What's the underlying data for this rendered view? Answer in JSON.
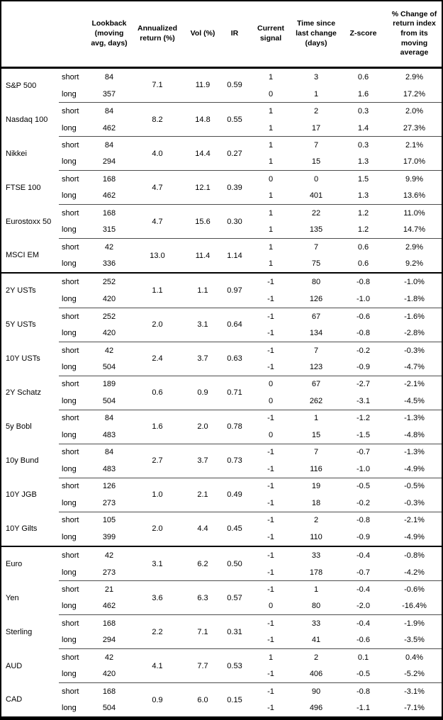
{
  "chart_data": {
    "type": "table",
    "columns": [
      "",
      "",
      "Lookback (moving avg, days)",
      "Annualized return (%)",
      "Vol (%)",
      "IR",
      "Current signal",
      "Time since last change (days)",
      "Z-score",
      "% Change of return index from its moving average"
    ],
    "side_labels": {
      "short": "short",
      "long": "long"
    },
    "groups": [
      {
        "asset": "S&P 500",
        "section": "equities",
        "annualized_return_pct": "7.1",
        "vol_pct": "11.9",
        "ir": "0.59",
        "short": {
          "lookback": "84",
          "signal": "1",
          "days_since_change": "3",
          "zscore": "0.6",
          "pct_change": "2.9%"
        },
        "long": {
          "lookback": "357",
          "signal": "0",
          "days_since_change": "1",
          "zscore": "1.6",
          "pct_change": "17.2%"
        }
      },
      {
        "asset": "Nasdaq 100",
        "section": "equities",
        "annualized_return_pct": "8.2",
        "vol_pct": "14.8",
        "ir": "0.55",
        "short": {
          "lookback": "84",
          "signal": "1",
          "days_since_change": "2",
          "zscore": "0.3",
          "pct_change": "2.0%"
        },
        "long": {
          "lookback": "462",
          "signal": "1",
          "days_since_change": "17",
          "zscore": "1.4",
          "pct_change": "27.3%"
        }
      },
      {
        "asset": "Nikkei",
        "section": "equities",
        "annualized_return_pct": "4.0",
        "vol_pct": "14.4",
        "ir": "0.27",
        "short": {
          "lookback": "84",
          "signal": "1",
          "days_since_change": "7",
          "zscore": "0.3",
          "pct_change": "2.1%"
        },
        "long": {
          "lookback": "294",
          "signal": "1",
          "days_since_change": "15",
          "zscore": "1.3",
          "pct_change": "17.0%"
        }
      },
      {
        "asset": "FTSE 100",
        "section": "equities",
        "annualized_return_pct": "4.7",
        "vol_pct": "12.1",
        "ir": "0.39",
        "short": {
          "lookback": "168",
          "signal": "0",
          "days_since_change": "0",
          "zscore": "1.5",
          "pct_change": "9.9%"
        },
        "long": {
          "lookback": "462",
          "signal": "1",
          "days_since_change": "401",
          "zscore": "1.3",
          "pct_change": "13.6%"
        }
      },
      {
        "asset": "Eurostoxx 50",
        "section": "equities",
        "annualized_return_pct": "4.7",
        "vol_pct": "15.6",
        "ir": "0.30",
        "short": {
          "lookback": "168",
          "signal": "1",
          "days_since_change": "22",
          "zscore": "1.2",
          "pct_change": "11.0%"
        },
        "long": {
          "lookback": "315",
          "signal": "1",
          "days_since_change": "135",
          "zscore": "1.2",
          "pct_change": "14.7%"
        }
      },
      {
        "asset": "MSCI EM",
        "section": "equities",
        "annualized_return_pct": "13.0",
        "vol_pct": "11.4",
        "ir": "1.14",
        "short": {
          "lookback": "42",
          "signal": "1",
          "days_since_change": "7",
          "zscore": "0.6",
          "pct_change": "2.9%"
        },
        "long": {
          "lookback": "336",
          "signal": "1",
          "days_since_change": "75",
          "zscore": "0.6",
          "pct_change": "9.2%"
        }
      },
      {
        "asset": "2Y USTs",
        "section": "bonds",
        "annualized_return_pct": "1.1",
        "vol_pct": "1.1",
        "ir": "0.97",
        "short": {
          "lookback": "252",
          "signal": "-1",
          "days_since_change": "80",
          "zscore": "-0.8",
          "pct_change": "-1.0%"
        },
        "long": {
          "lookback": "420",
          "signal": "-1",
          "days_since_change": "126",
          "zscore": "-1.0",
          "pct_change": "-1.8%"
        }
      },
      {
        "asset": "5Y USTs",
        "section": "bonds",
        "annualized_return_pct": "2.0",
        "vol_pct": "3.1",
        "ir": "0.64",
        "short": {
          "lookback": "252",
          "signal": "-1",
          "days_since_change": "67",
          "zscore": "-0.6",
          "pct_change": "-1.6%"
        },
        "long": {
          "lookback": "420",
          "signal": "-1",
          "days_since_change": "134",
          "zscore": "-0.8",
          "pct_change": "-2.8%"
        }
      },
      {
        "asset": "10Y USTs",
        "section": "bonds",
        "annualized_return_pct": "2.4",
        "vol_pct": "3.7",
        "ir": "0.63",
        "short": {
          "lookback": "42",
          "signal": "-1",
          "days_since_change": "7",
          "zscore": "-0.2",
          "pct_change": "-0.3%"
        },
        "long": {
          "lookback": "504",
          "signal": "-1",
          "days_since_change": "123",
          "zscore": "-0.9",
          "pct_change": "-4.7%"
        }
      },
      {
        "asset": "2Y Schatz",
        "section": "bonds",
        "annualized_return_pct": "0.6",
        "vol_pct": "0.9",
        "ir": "0.71",
        "short": {
          "lookback": "189",
          "signal": "0",
          "days_since_change": "67",
          "zscore": "-2.7",
          "pct_change": "-2.1%"
        },
        "long": {
          "lookback": "504",
          "signal": "0",
          "days_since_change": "262",
          "zscore": "-3.1",
          "pct_change": "-4.5%"
        }
      },
      {
        "asset": "5y Bobl",
        "section": "bonds",
        "annualized_return_pct": "1.6",
        "vol_pct": "2.0",
        "ir": "0.78",
        "short": {
          "lookback": "84",
          "signal": "-1",
          "days_since_change": "1",
          "zscore": "-1.2",
          "pct_change": "-1.3%"
        },
        "long": {
          "lookback": "483",
          "signal": "0",
          "days_since_change": "15",
          "zscore": "-1.5",
          "pct_change": "-4.8%"
        }
      },
      {
        "asset": "10y Bund",
        "section": "bonds",
        "annualized_return_pct": "2.7",
        "vol_pct": "3.7",
        "ir": "0.73",
        "short": {
          "lookback": "84",
          "signal": "-1",
          "days_since_change": "7",
          "zscore": "-0.7",
          "pct_change": "-1.3%"
        },
        "long": {
          "lookback": "483",
          "signal": "-1",
          "days_since_change": "116",
          "zscore": "-1.0",
          "pct_change": "-4.9%"
        }
      },
      {
        "asset": "10Y JGB",
        "section": "bonds",
        "annualized_return_pct": "1.0",
        "vol_pct": "2.1",
        "ir": "0.49",
        "short": {
          "lookback": "126",
          "signal": "-1",
          "days_since_change": "19",
          "zscore": "-0.5",
          "pct_change": "-0.5%"
        },
        "long": {
          "lookback": "273",
          "signal": "-1",
          "days_since_change": "18",
          "zscore": "-0.2",
          "pct_change": "-0.3%"
        }
      },
      {
        "asset": "10Y Gilts",
        "section": "bonds",
        "annualized_return_pct": "2.0",
        "vol_pct": "4.4",
        "ir": "0.45",
        "short": {
          "lookback": "105",
          "signal": "-1",
          "days_since_change": "2",
          "zscore": "-0.8",
          "pct_change": "-2.1%"
        },
        "long": {
          "lookback": "399",
          "signal": "-1",
          "days_since_change": "110",
          "zscore": "-0.9",
          "pct_change": "-4.9%"
        }
      },
      {
        "asset": "Euro",
        "section": "fx",
        "annualized_return_pct": "3.1",
        "vol_pct": "6.2",
        "ir": "0.50",
        "short": {
          "lookback": "42",
          "signal": "-1",
          "days_since_change": "33",
          "zscore": "-0.4",
          "pct_change": "-0.8%"
        },
        "long": {
          "lookback": "273",
          "signal": "-1",
          "days_since_change": "178",
          "zscore": "-0.7",
          "pct_change": "-4.2%"
        }
      },
      {
        "asset": "Yen",
        "section": "fx",
        "annualized_return_pct": "3.6",
        "vol_pct": "6.3",
        "ir": "0.57",
        "short": {
          "lookback": "21",
          "signal": "-1",
          "days_since_change": "1",
          "zscore": "-0.4",
          "pct_change": "-0.6%"
        },
        "long": {
          "lookback": "462",
          "signal": "0",
          "days_since_change": "80",
          "zscore": "-2.0",
          "pct_change": "-16.4%"
        }
      },
      {
        "asset": "Sterling",
        "section": "fx",
        "annualized_return_pct": "2.2",
        "vol_pct": "7.1",
        "ir": "0.31",
        "short": {
          "lookback": "168",
          "signal": "-1",
          "days_since_change": "33",
          "zscore": "-0.4",
          "pct_change": "-1.9%"
        },
        "long": {
          "lookback": "294",
          "signal": "-1",
          "days_since_change": "41",
          "zscore": "-0.6",
          "pct_change": "-3.5%"
        }
      },
      {
        "asset": "AUD",
        "section": "fx",
        "annualized_return_pct": "4.1",
        "vol_pct": "7.7",
        "ir": "0.53",
        "short": {
          "lookback": "42",
          "signal": "1",
          "days_since_change": "2",
          "zscore": "0.1",
          "pct_change": "0.4%"
        },
        "long": {
          "lookback": "420",
          "signal": "-1",
          "days_since_change": "406",
          "zscore": "-0.5",
          "pct_change": "-5.2%"
        }
      },
      {
        "asset": "CAD",
        "section": "fx",
        "annualized_return_pct": "0.9",
        "vol_pct": "6.0",
        "ir": "0.15",
        "short": {
          "lookback": "168",
          "signal": "-1",
          "days_since_change": "90",
          "zscore": "-0.8",
          "pct_change": "-3.1%"
        },
        "long": {
          "lookback": "504",
          "signal": "-1",
          "days_since_change": "496",
          "zscore": "-1.1",
          "pct_change": "-7.1%"
        }
      }
    ]
  }
}
